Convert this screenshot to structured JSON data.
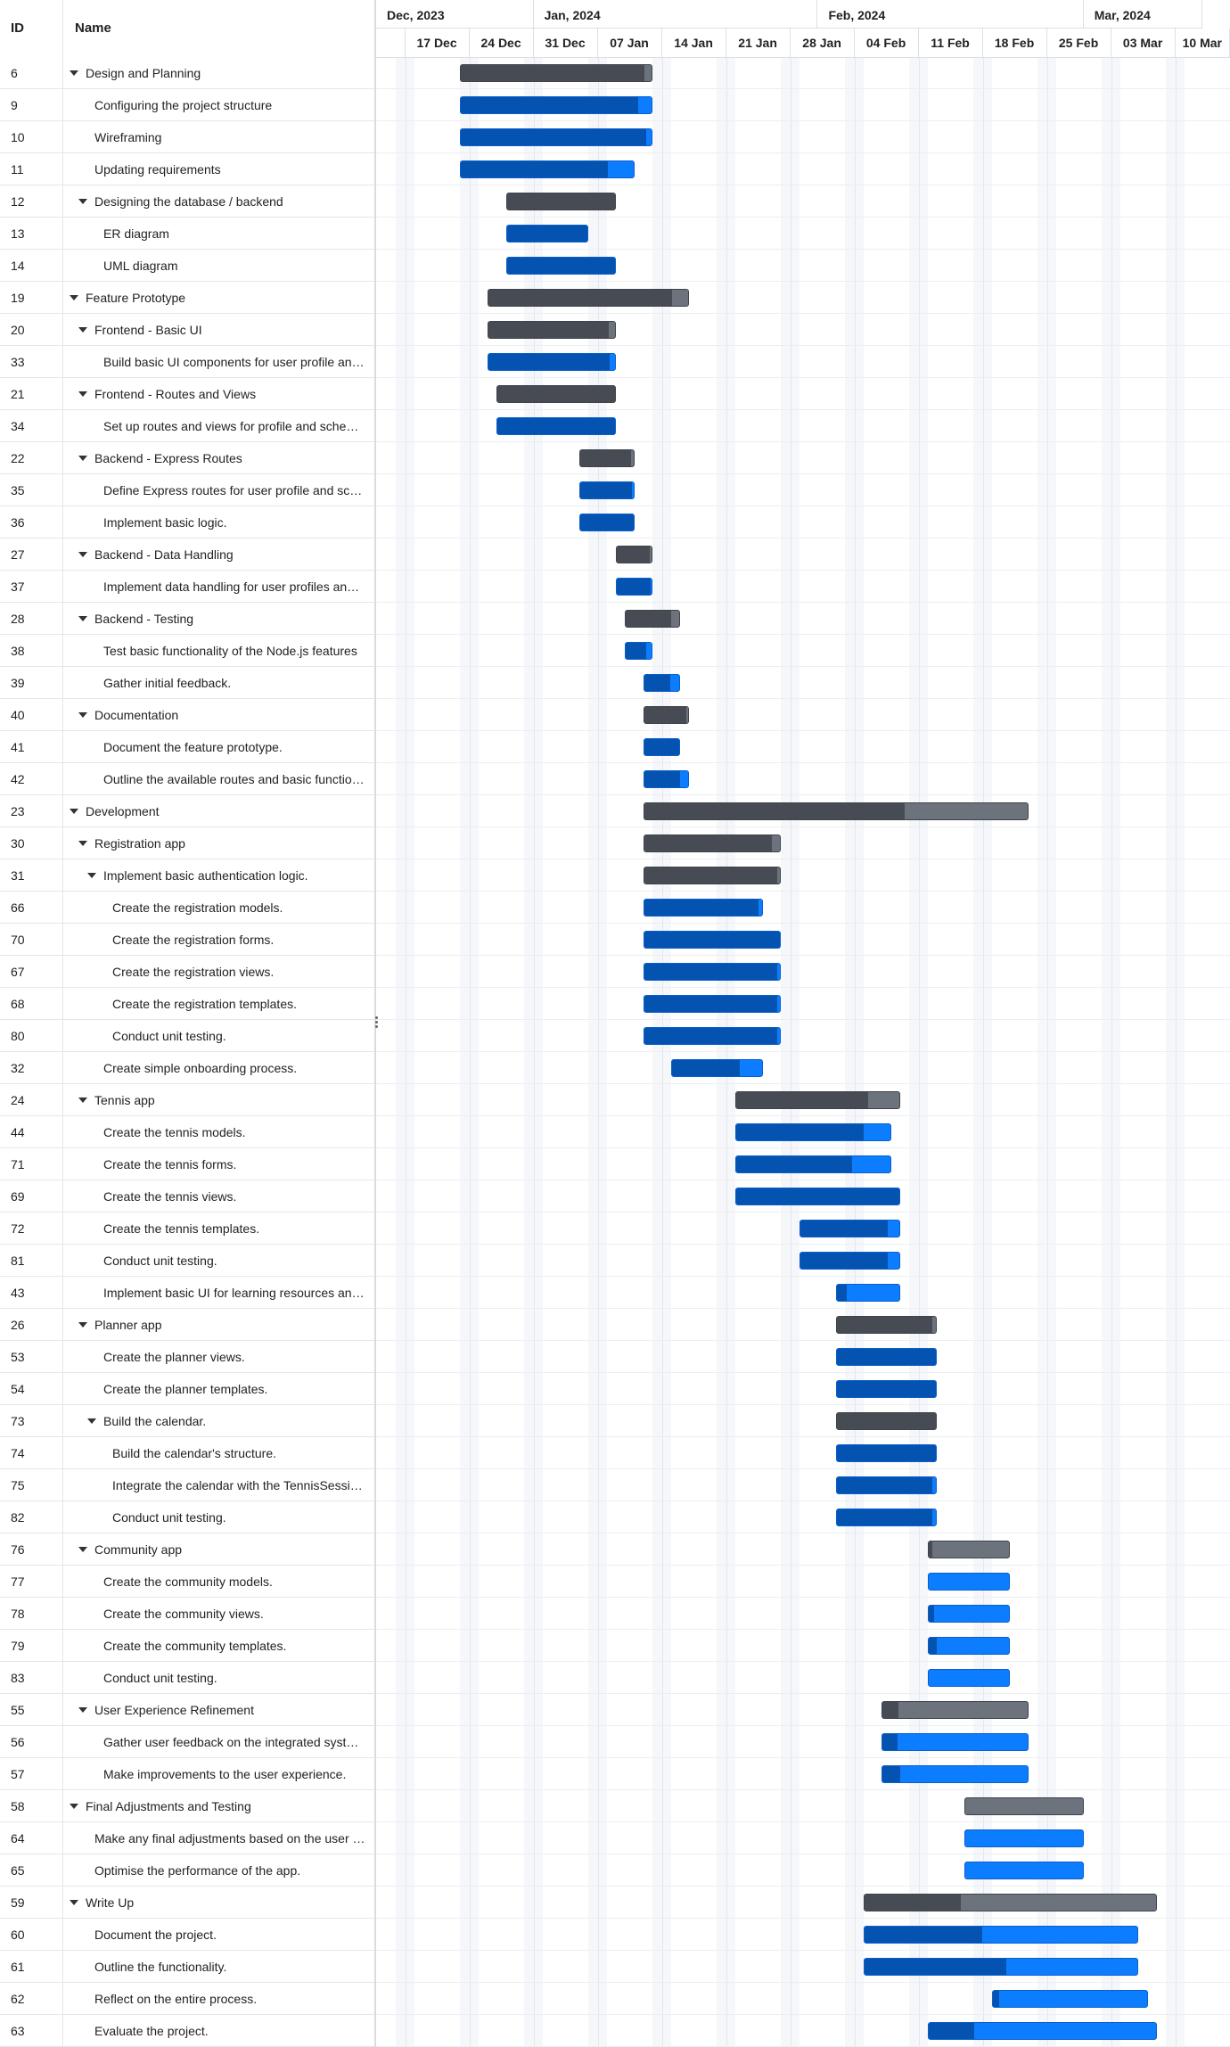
{
  "grid": {
    "header": {
      "id_label": "ID",
      "name_label": "Name"
    },
    "rows": [
      {
        "id": "6",
        "name": "Design and Planning",
        "level": 0,
        "expandable": true,
        "start": "2023-12-23",
        "end": "2024-01-13",
        "percent": 96
      },
      {
        "id": "9",
        "name": "Configuring the project structure",
        "level": 1,
        "expandable": false,
        "start": "2023-12-23",
        "end": "2024-01-13",
        "percent": 93
      },
      {
        "id": "10",
        "name": "Wireframing",
        "level": 1,
        "expandable": false,
        "start": "2023-12-23",
        "end": "2024-01-13",
        "percent": 97
      },
      {
        "id": "11",
        "name": "Updating requirements",
        "level": 1,
        "expandable": false,
        "start": "2023-12-23",
        "end": "2024-01-11",
        "percent": 85
      },
      {
        "id": "12",
        "name": "Designing the database / backend",
        "level": 1,
        "expandable": true,
        "start": "2023-12-28",
        "end": "2024-01-09",
        "percent": 100
      },
      {
        "id": "13",
        "name": "ER diagram",
        "level": 2,
        "expandable": false,
        "start": "2023-12-28",
        "end": "2024-01-06",
        "percent": 100
      },
      {
        "id": "14",
        "name": "UML diagram",
        "level": 2,
        "expandable": false,
        "start": "2023-12-28",
        "end": "2024-01-09",
        "percent": 100
      },
      {
        "id": "19",
        "name": "Feature Prototype",
        "level": 0,
        "expandable": true,
        "start": "2023-12-26",
        "end": "2024-01-17",
        "percent": 92
      },
      {
        "id": "20",
        "name": "Frontend - Basic UI",
        "level": 1,
        "expandable": true,
        "start": "2023-12-26",
        "end": "2024-01-09",
        "percent": 95
      },
      {
        "id": "33",
        "name": "Build basic UI components for user profile and schedule",
        "level": 2,
        "expandable": false,
        "start": "2023-12-26",
        "end": "2024-01-09",
        "percent": 96
      },
      {
        "id": "21",
        "name": "Frontend - Routes and Views",
        "level": 1,
        "expandable": true,
        "start": "2023-12-27",
        "end": "2024-01-09",
        "percent": 100
      },
      {
        "id": "34",
        "name": "Set up routes and views for profile and schedule",
        "level": 2,
        "expandable": false,
        "start": "2023-12-27",
        "end": "2024-01-09",
        "percent": 100
      },
      {
        "id": "22",
        "name": "Backend - Express Routes",
        "level": 1,
        "expandable": true,
        "start": "2024-01-05",
        "end": "2024-01-11",
        "percent": 95
      },
      {
        "id": "35",
        "name": "Define Express routes for user profile and schedule",
        "level": 2,
        "expandable": false,
        "start": "2024-01-05",
        "end": "2024-01-11",
        "percent": 97
      },
      {
        "id": "36",
        "name": "Implement basic logic.",
        "level": 2,
        "expandable": false,
        "start": "2024-01-05",
        "end": "2024-01-11",
        "percent": 100
      },
      {
        "id": "27",
        "name": "Backend - Data Handling",
        "level": 1,
        "expandable": true,
        "start": "2024-01-09",
        "end": "2024-01-13",
        "percent": 95
      },
      {
        "id": "37",
        "name": "Implement data handling for user profiles and schedules",
        "level": 2,
        "expandable": false,
        "start": "2024-01-09",
        "end": "2024-01-13",
        "percent": 97
      },
      {
        "id": "28",
        "name": "Backend - Testing",
        "level": 1,
        "expandable": true,
        "start": "2024-01-10",
        "end": "2024-01-16",
        "percent": 85
      },
      {
        "id": "38",
        "name": "Test basic functionality of the Node.js features",
        "level": 2,
        "expandable": false,
        "start": "2024-01-10",
        "end": "2024-01-13",
        "percent": 80
      },
      {
        "id": "39",
        "name": "Gather initial feedback.",
        "level": 2,
        "expandable": false,
        "start": "2024-01-12",
        "end": "2024-01-16",
        "percent": 75
      },
      {
        "id": "40",
        "name": "Documentation",
        "level": 1,
        "expandable": true,
        "start": "2024-01-12",
        "end": "2024-01-17",
        "percent": 95
      },
      {
        "id": "41",
        "name": "Document the feature prototype.",
        "level": 2,
        "expandable": false,
        "start": "2024-01-12",
        "end": "2024-01-16",
        "percent": 100
      },
      {
        "id": "42",
        "name": "Outline the available routes and basic functionality.",
        "level": 2,
        "expandable": false,
        "start": "2024-01-12",
        "end": "2024-01-17",
        "percent": 80
      },
      {
        "id": "23",
        "name": "Development",
        "level": 0,
        "expandable": true,
        "start": "2024-01-12",
        "end": "2024-02-23",
        "percent": 68
      },
      {
        "id": "30",
        "name": "Registration app",
        "level": 1,
        "expandable": true,
        "start": "2024-01-12",
        "end": "2024-01-27",
        "percent": 94
      },
      {
        "id": "31",
        "name": "Implement basic authentication logic.",
        "level": 2,
        "expandable": true,
        "start": "2024-01-12",
        "end": "2024-01-27",
        "percent": 98
      },
      {
        "id": "66",
        "name": "Create the registration models.",
        "level": 3,
        "expandable": false,
        "start": "2024-01-12",
        "end": "2024-01-25",
        "percent": 97
      },
      {
        "id": "70",
        "name": "Create the registration forms.",
        "level": 3,
        "expandable": false,
        "start": "2024-01-12",
        "end": "2024-01-27",
        "percent": 100
      },
      {
        "id": "67",
        "name": "Create the registration views.",
        "level": 3,
        "expandable": false,
        "start": "2024-01-12",
        "end": "2024-01-27",
        "percent": 98
      },
      {
        "id": "68",
        "name": "Create the registration templates.",
        "level": 3,
        "expandable": false,
        "start": "2024-01-12",
        "end": "2024-01-27",
        "percent": 98
      },
      {
        "id": "80",
        "name": "Conduct unit testing.",
        "level": 3,
        "expandable": false,
        "start": "2024-01-12",
        "end": "2024-01-27",
        "percent": 98
      },
      {
        "id": "32",
        "name": "Create simple onboarding process.",
        "level": 2,
        "expandable": false,
        "start": "2024-01-15",
        "end": "2024-01-25",
        "percent": 75
      },
      {
        "id": "24",
        "name": "Tennis app",
        "level": 1,
        "expandable": true,
        "start": "2024-01-22",
        "end": "2024-02-09",
        "percent": 81
      },
      {
        "id": "44",
        "name": "Create the tennis models.",
        "level": 2,
        "expandable": false,
        "start": "2024-01-22",
        "end": "2024-02-08",
        "percent": 83
      },
      {
        "id": "71",
        "name": "Create the tennis forms.",
        "level": 2,
        "expandable": false,
        "start": "2024-01-22",
        "end": "2024-02-08",
        "percent": 75
      },
      {
        "id": "69",
        "name": "Create the tennis views.",
        "level": 2,
        "expandable": false,
        "start": "2024-01-22",
        "end": "2024-02-09",
        "percent": 100
      },
      {
        "id": "72",
        "name": "Create the tennis templates.",
        "level": 2,
        "expandable": false,
        "start": "2024-01-29",
        "end": "2024-02-09",
        "percent": 88
      },
      {
        "id": "81",
        "name": "Conduct unit testing.",
        "level": 2,
        "expandable": false,
        "start": "2024-01-29",
        "end": "2024-02-09",
        "percent": 88
      },
      {
        "id": "43",
        "name": "Implement basic UI for learning resources and progress",
        "level": 2,
        "expandable": false,
        "start": "2024-02-02",
        "end": "2024-02-09",
        "percent": 15
      },
      {
        "id": "26",
        "name": "Planner app",
        "level": 1,
        "expandable": true,
        "start": "2024-02-02",
        "end": "2024-02-13",
        "percent": 96
      },
      {
        "id": "53",
        "name": "Create the planner views.",
        "level": 2,
        "expandable": false,
        "start": "2024-02-02",
        "end": "2024-02-13",
        "percent": 100
      },
      {
        "id": "54",
        "name": "Create the planner templates.",
        "level": 2,
        "expandable": false,
        "start": "2024-02-02",
        "end": "2024-02-13",
        "percent": 100
      },
      {
        "id": "73",
        "name": "Build the calendar.",
        "level": 2,
        "expandable": true,
        "start": "2024-02-02",
        "end": "2024-02-13",
        "percent": 100
      },
      {
        "id": "74",
        "name": "Build the calendar's structure.",
        "level": 3,
        "expandable": false,
        "start": "2024-02-02",
        "end": "2024-02-13",
        "percent": 100
      },
      {
        "id": "75",
        "name": "Integrate the calendar with the TennisSession model.",
        "level": 3,
        "expandable": false,
        "start": "2024-02-02",
        "end": "2024-02-13",
        "percent": 96
      },
      {
        "id": "82",
        "name": "Conduct unit testing.",
        "level": 3,
        "expandable": false,
        "start": "2024-02-02",
        "end": "2024-02-13",
        "percent": 96
      },
      {
        "id": "76",
        "name": "Community app",
        "level": 1,
        "expandable": true,
        "start": "2024-02-12",
        "end": "2024-02-21",
        "percent": 5
      },
      {
        "id": "77",
        "name": "Create the community models.",
        "level": 2,
        "expandable": false,
        "start": "2024-02-12",
        "end": "2024-02-21",
        "percent": 0
      },
      {
        "id": "78",
        "name": "Create the community views.",
        "level": 2,
        "expandable": false,
        "start": "2024-02-12",
        "end": "2024-02-21",
        "percent": 7
      },
      {
        "id": "79",
        "name": "Create the community templates.",
        "level": 2,
        "expandable": false,
        "start": "2024-02-12",
        "end": "2024-02-21",
        "percent": 10
      },
      {
        "id": "83",
        "name": "Conduct unit testing.",
        "level": 2,
        "expandable": false,
        "start": "2024-02-12",
        "end": "2024-02-21",
        "percent": 0
      },
      {
        "id": "55",
        "name": "User Experience Refinement",
        "level": 1,
        "expandable": true,
        "start": "2024-02-07",
        "end": "2024-02-23",
        "percent": 11
      },
      {
        "id": "56",
        "name": "Gather user feedback on the integrated system.",
        "level": 2,
        "expandable": false,
        "start": "2024-02-07",
        "end": "2024-02-23",
        "percent": 10
      },
      {
        "id": "57",
        "name": "Make improvements to the user experience.",
        "level": 2,
        "expandable": false,
        "start": "2024-02-07",
        "end": "2024-02-23",
        "percent": 12
      },
      {
        "id": "58",
        "name": "Final Adjustments and Testing",
        "level": 0,
        "expandable": true,
        "start": "2024-02-16",
        "end": "2024-02-29",
        "percent": 0
      },
      {
        "id": "64",
        "name": "Make any final adjustments based on the user feedback.",
        "level": 1,
        "expandable": false,
        "start": "2024-02-16",
        "end": "2024-02-29",
        "percent": 0
      },
      {
        "id": "65",
        "name": "Optimise the performance of the app.",
        "level": 1,
        "expandable": false,
        "start": "2024-02-16",
        "end": "2024-02-29",
        "percent": 0
      },
      {
        "id": "59",
        "name": "Write Up",
        "level": 0,
        "expandable": true,
        "start": "2024-02-05",
        "end": "2024-03-08",
        "percent": 33
      },
      {
        "id": "60",
        "name": "Document the project.",
        "level": 1,
        "expandable": false,
        "start": "2024-02-05",
        "end": "2024-03-06",
        "percent": 43
      },
      {
        "id": "61",
        "name": "Outline the functionality.",
        "level": 1,
        "expandable": false,
        "start": "2024-02-05",
        "end": "2024-03-06",
        "percent": 52
      },
      {
        "id": "62",
        "name": "Reflect on the entire process.",
        "level": 1,
        "expandable": false,
        "start": "2024-02-19",
        "end": "2024-03-07",
        "percent": 4
      },
      {
        "id": "63",
        "name": "Evaluate the project.",
        "level": 1,
        "expandable": false,
        "start": "2024-02-12",
        "end": "2024-03-08",
        "percent": 20
      }
    ]
  },
  "timeline": {
    "months": [
      {
        "label": "Dec, 2023",
        "start": "2023-12-10",
        "end": "2023-12-31"
      },
      {
        "label": "Jan, 2024",
        "start": "2023-12-31",
        "end": "2024-01-31"
      },
      {
        "label": "Feb, 2024",
        "start": "2024-01-31",
        "end": "2024-02-29"
      },
      {
        "label": "Mar, 2024",
        "start": "2024-02-29",
        "end": "2024-03-13"
      }
    ],
    "weeks": [
      {
        "label": "",
        "start": "2023-12-15"
      },
      {
        "label": "17 Dec",
        "start": "2023-12-17"
      },
      {
        "label": "24 Dec",
        "start": "2023-12-24"
      },
      {
        "label": "31 Dec",
        "start": "2023-12-31"
      },
      {
        "label": "07 Jan",
        "start": "2024-01-07"
      },
      {
        "label": "14 Jan",
        "start": "2024-01-14"
      },
      {
        "label": "21 Jan",
        "start": "2024-01-21"
      },
      {
        "label": "28 Jan",
        "start": "2024-01-28"
      },
      {
        "label": "04 Feb",
        "start": "2024-02-04"
      },
      {
        "label": "11 Feb",
        "start": "2024-02-11"
      },
      {
        "label": "18 Feb",
        "start": "2024-02-18"
      },
      {
        "label": "25 Feb",
        "start": "2024-02-25"
      },
      {
        "label": "03 Mar",
        "start": "2024-03-03"
      },
      {
        "label": "10 Mar",
        "start": "2024-03-10"
      }
    ]
  },
  "colors": {
    "task_bar": "#0d7dff",
    "task_progress": "#0553b0",
    "parent_bar": "#6c737c",
    "parent_progress": "#474c54",
    "grid_line": "#e4e7eb"
  }
}
